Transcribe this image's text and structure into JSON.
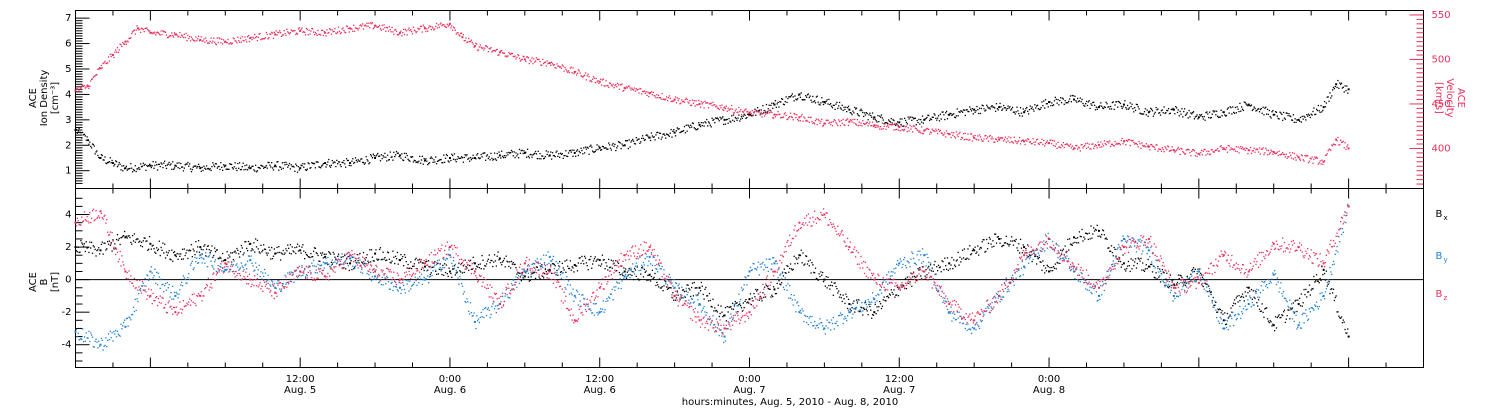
{
  "chart_data": [
    {
      "type": "scatter",
      "panel": "top",
      "ylabel_left": [
        "ACE",
        "Ion Density",
        "[cm⁻³]"
      ],
      "ylabel_right": [
        "ACE",
        "Velocity",
        "[km/s]"
      ],
      "y_left_ticks": [
        "1",
        "2",
        "3",
        "4",
        "5",
        "6",
        "7"
      ],
      "y_left_range": [
        0.3,
        7.3
      ],
      "y_right_ticks": [
        "400",
        "450",
        "500",
        "550"
      ],
      "y_right_range": [
        355,
        555
      ],
      "x_range_hours": [
        -6,
        102
      ],
      "series": [
        {
          "color": "#000000",
          "axis": "left",
          "x": [
            -6,
            -5,
            -4,
            -3,
            -2,
            0,
            2,
            4,
            6,
            8,
            10,
            12,
            14,
            16,
            18,
            20,
            22,
            24,
            26,
            28,
            30,
            32,
            34,
            36,
            38,
            40,
            42,
            44,
            46,
            48,
            50,
            52,
            54,
            56,
            58,
            60,
            62,
            64,
            66,
            68,
            70,
            72,
            74,
            76,
            78,
            80,
            82,
            84,
            86,
            88,
            90,
            92,
            94,
            95,
            96
          ],
          "y": [
            2.6,
            2.2,
            1.5,
            1.3,
            1.1,
            1.2,
            1.2,
            1.1,
            1.2,
            1.1,
            1.2,
            1.1,
            1.3,
            1.3,
            1.5,
            1.6,
            1.4,
            1.5,
            1.5,
            1.6,
            1.7,
            1.6,
            1.7,
            1.9,
            2.0,
            2.3,
            2.5,
            2.8,
            3.0,
            3.2,
            3.6,
            4.0,
            3.7,
            3.4,
            3.1,
            2.9,
            3.0,
            3.2,
            3.4,
            3.5,
            3.3,
            3.7,
            3.8,
            3.5,
            3.6,
            3.3,
            3.4,
            3.1,
            3.3,
            3.6,
            3.2,
            3.0,
            3.5,
            4.4,
            4.2
          ]
        },
        {
          "color": "#e8305a",
          "axis": "right",
          "x": [
            -6,
            -5,
            -4,
            -3,
            -2,
            -1,
            0,
            2,
            4,
            6,
            8,
            10,
            12,
            14,
            16,
            18,
            20,
            22,
            24,
            25,
            26,
            28,
            30,
            32,
            34,
            36,
            38,
            40,
            42,
            44,
            46,
            48,
            50,
            52,
            54,
            56,
            58,
            60,
            62,
            64,
            66,
            68,
            70,
            72,
            74,
            76,
            78,
            80,
            82,
            84,
            86,
            88,
            90,
            92,
            94,
            95,
            96
          ],
          "y": [
            465,
            470,
            490,
            505,
            520,
            535,
            530,
            528,
            522,
            520,
            524,
            528,
            532,
            530,
            535,
            538,
            530,
            535,
            540,
            525,
            515,
            508,
            500,
            496,
            486,
            475,
            468,
            462,
            455,
            450,
            446,
            440,
            438,
            435,
            428,
            430,
            426,
            424,
            420,
            416,
            412,
            410,
            408,
            406,
            400,
            404,
            408,
            402,
            398,
            394,
            400,
            398,
            396,
            390,
            385,
            410,
            400
          ]
        }
      ]
    },
    {
      "type": "scatter",
      "panel": "bottom",
      "ylabel_left": [
        "ACE",
        "B",
        "[nT]"
      ],
      "y_ticks": [
        "-4",
        "-2",
        "0",
        "2",
        "4"
      ],
      "y_range": [
        -5.4,
        5.6
      ],
      "x_range_hours": [
        -6,
        102
      ],
      "legend": [
        {
          "label": "B",
          "sub": "x",
          "color": "#000000"
        },
        {
          "label": "B",
          "sub": "y",
          "color": "#1e7fd6"
        },
        {
          "label": "B",
          "sub": "z",
          "color": "#e8305a"
        }
      ],
      "series": [
        {
          "name": "Bx",
          "color": "#000000",
          "x": [
            -6,
            -4,
            -2,
            0,
            2,
            4,
            6,
            8,
            10,
            12,
            14,
            16,
            18,
            20,
            22,
            24,
            26,
            28,
            30,
            32,
            34,
            36,
            38,
            40,
            42,
            44,
            46,
            48,
            50,
            52,
            54,
            56,
            58,
            60,
            62,
            64,
            66,
            68,
            70,
            72,
            74,
            76,
            78,
            80,
            82,
            84,
            86,
            88,
            90,
            92,
            94,
            96
          ],
          "y": [
            2.0,
            1.8,
            2.6,
            2.2,
            1.5,
            2.0,
            1.2,
            2.2,
            1.6,
            1.8,
            1.4,
            1.0,
            1.6,
            1.2,
            0.8,
            0.5,
            1.0,
            1.3,
            0.2,
            0.6,
            0.9,
            1.2,
            0.5,
            0.3,
            -1.0,
            -0.5,
            -2.2,
            -1.2,
            -0.6,
            1.5,
            0.0,
            -1.5,
            -2.0,
            -0.5,
            0.5,
            1.0,
            1.8,
            2.5,
            2.0,
            0.5,
            2.6,
            3.0,
            1.0,
            0.8,
            -0.3,
            0.5,
            -2.5,
            -0.5,
            -2.8,
            -1.5,
            0.6,
            -3.5
          ]
        },
        {
          "name": "By",
          "color": "#1e7fd6",
          "x": [
            -6,
            -4,
            -2,
            0,
            2,
            4,
            6,
            8,
            10,
            12,
            14,
            16,
            18,
            20,
            22,
            24,
            26,
            28,
            30,
            32,
            34,
            36,
            38,
            40,
            42,
            44,
            46,
            48,
            50,
            52,
            54,
            56,
            58,
            60,
            62,
            64,
            66,
            68,
            70,
            72,
            74,
            76,
            78,
            80,
            82,
            84,
            86,
            88,
            90,
            92,
            94,
            96
          ],
          "y": [
            -3.2,
            -4.0,
            -2.9,
            0.5,
            -1.0,
            1.5,
            0.6,
            1.2,
            -0.5,
            0.5,
            1.0,
            1.3,
            0.2,
            -0.5,
            0.0,
            1.5,
            -2.6,
            -1.5,
            0.5,
            1.4,
            -1.0,
            -2.0,
            0.2,
            1.4,
            -0.5,
            -1.5,
            -3.5,
            0.5,
            1.0,
            -2.0,
            -3.0,
            -2.0,
            -1.2,
            1.0,
            1.5,
            -2.0,
            -3.0,
            -1.0,
            0.8,
            2.5,
            0.5,
            -1.0,
            2.5,
            1.8,
            -1.0,
            0.5,
            -3.0,
            -1.5,
            0.3,
            -2.8,
            -1.0,
            4.5
          ]
        },
        {
          "name": "Bz",
          "color": "#e8305a",
          "x": [
            -6,
            -4,
            -2,
            0,
            2,
            4,
            6,
            8,
            10,
            12,
            14,
            16,
            18,
            20,
            22,
            24,
            26,
            28,
            30,
            32,
            34,
            36,
            38,
            40,
            42,
            44,
            46,
            48,
            50,
            52,
            54,
            56,
            58,
            60,
            62,
            64,
            66,
            68,
            70,
            72,
            74,
            76,
            78,
            80,
            82,
            84,
            86,
            88,
            90,
            92,
            94,
            96
          ],
          "y": [
            3.5,
            4.2,
            0.5,
            -1.0,
            -2.0,
            -1.0,
            1.0,
            0.0,
            -0.8,
            0.5,
            0.2,
            1.5,
            0.5,
            0.0,
            1.0,
            2.0,
            0.5,
            -1.5,
            1.0,
            0.5,
            -2.5,
            -0.5,
            1.5,
            2.0,
            -1.0,
            -2.5,
            -3.0,
            -2.0,
            0.5,
            3.5,
            4.0,
            2.0,
            0.0,
            -0.5,
            0.5,
            -1.5,
            -2.5,
            -1.0,
            1.5,
            2.5,
            0.8,
            -0.5,
            2.0,
            2.5,
            -0.5,
            -0.2,
            1.5,
            0.5,
            2.2,
            2.0,
            1.0,
            4.5
          ]
        }
      ]
    }
  ],
  "x_axis": {
    "ticks": [
      {
        "hour": 12,
        "time": "12:00",
        "date": "Aug. 5"
      },
      {
        "hour": 24,
        "time": "0:00",
        "date": "Aug. 6"
      },
      {
        "hour": 36,
        "time": "12:00",
        "date": "Aug. 6"
      },
      {
        "hour": 48,
        "time": "0:00",
        "date": "Aug. 7"
      },
      {
        "hour": 60,
        "time": "12:00",
        "date": "Aug. 7"
      },
      {
        "hour": 72,
        "time": "0:00",
        "date": "Aug. 8"
      }
    ],
    "title": "hours:minutes, Aug.  5, 2010 - Aug.  8, 2010"
  },
  "colors": {
    "black": "#000000",
    "blue": "#1e7fd6",
    "red": "#e8305a"
  }
}
